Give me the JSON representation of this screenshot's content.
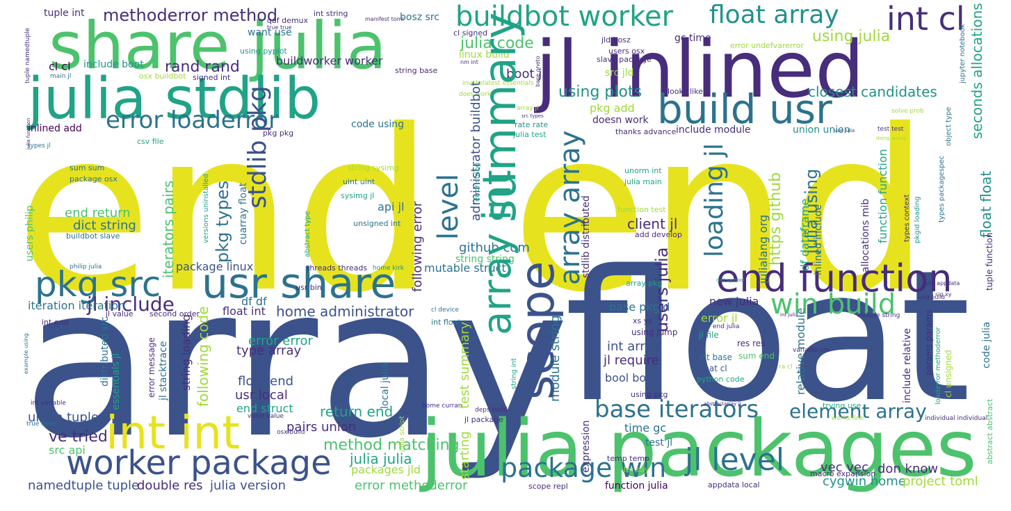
{
  "palette": {
    "background": "#ffffff",
    "yellow": "#e6e31e",
    "lime": "#9fd93a",
    "green": "#4cc26c",
    "teal": "#20a386",
    "cyan": "#21918c",
    "steel": "#2c728e",
    "blue": "#3b528b",
    "indigo": "#472d7b",
    "purple": "#440154"
  },
  "words": [
    {
      "text": "end",
      "color": "yellow"
    },
    {
      "text": "end",
      "color": "yellow"
    },
    {
      "text": "array",
      "color": "blue"
    },
    {
      "text": "float",
      "color": "blue"
    },
    {
      "text": "julia packages",
      "color": "green"
    },
    {
      "text": "jl inlined",
      "color": "indigo"
    },
    {
      "text": "share julia",
      "color": "green"
    },
    {
      "text": "julia stdlib",
      "color": "teal"
    },
    {
      "text": "int int",
      "color": "yellow"
    },
    {
      "text": "usr share",
      "color": "steel"
    },
    {
      "text": "build usr",
      "color": "steel"
    },
    {
      "text": "end function",
      "color": "indigo"
    },
    {
      "text": "worker package",
      "color": "blue"
    },
    {
      "text": "pkg src",
      "color": "steel"
    },
    {
      "text": "buildbot worker",
      "color": "teal"
    },
    {
      "text": "float array",
      "color": "teal"
    },
    {
      "text": "int cl",
      "color": "indigo"
    },
    {
      "text": "package win",
      "color": "steel"
    },
    {
      "text": "jl level",
      "color": "steel"
    },
    {
      "text": "win build",
      "color": "green"
    },
    {
      "text": "base iterators",
      "color": "steel"
    },
    {
      "text": "error loaderror",
      "color": "steel"
    },
    {
      "text": "jl include",
      "color": "indigo"
    },
    {
      "text": "element array",
      "color": "steel"
    },
    {
      "text": "method matching",
      "color": "green"
    },
    {
      "text": "methoderror method",
      "color": "indigo"
    },
    {
      "text": "rand rand",
      "color": "indigo"
    },
    {
      "text": "julia code",
      "color": "green"
    },
    {
      "text": "using plots",
      "color": "cyan"
    },
    {
      "text": "closest candidates",
      "color": "cyan"
    },
    {
      "text": "using julia",
      "color": "lime"
    },
    {
      "text": "julia julia",
      "color": "teal"
    },
    {
      "text": "namedtuple tuple",
      "color": "blue"
    },
    {
      "text": "double res",
      "color": "indigo"
    },
    {
      "text": "julia version",
      "color": "blue"
    },
    {
      "text": "cygwin home",
      "color": "cyan"
    },
    {
      "text": "project toml",
      "color": "lime"
    },
    {
      "text": "don know",
      "color": "indigo"
    },
    {
      "text": "vec vec",
      "color": "indigo"
    },
    {
      "text": "error methoderror",
      "color": "green"
    },
    {
      "text": "packages jld",
      "color": "lime"
    },
    {
      "text": "ve tried",
      "color": "indigo"
    },
    {
      "text": "union tuple",
      "color": "blue"
    },
    {
      "text": "src api",
      "color": "green"
    },
    {
      "text": "pairs union",
      "color": "indigo"
    },
    {
      "text": "return end",
      "color": "teal"
    },
    {
      "text": "end struct",
      "color": "teal"
    },
    {
      "text": "usr local",
      "color": "indigo"
    },
    {
      "text": "float end",
      "color": "blue"
    },
    {
      "text": "type array",
      "color": "indigo"
    },
    {
      "text": "error error",
      "color": "teal"
    },
    {
      "text": "home administrator",
      "color": "blue"
    },
    {
      "text": "float int",
      "color": "indigo"
    },
    {
      "text": "df df",
      "color": "steel"
    },
    {
      "text": "package linux",
      "color": "blue"
    },
    {
      "text": "mutable struct",
      "color": "steel"
    },
    {
      "text": "string string",
      "color": "green"
    },
    {
      "text": "github com",
      "color": "steel"
    },
    {
      "text": "client jl",
      "color": "indigo"
    },
    {
      "text": "api jl",
      "color": "steel"
    },
    {
      "text": "dict string",
      "color": "steel"
    },
    {
      "text": "end return",
      "color": "green"
    },
    {
      "text": "int array",
      "color": "blue"
    },
    {
      "text": "jl require",
      "color": "indigo"
    },
    {
      "text": "bool bool",
      "color": "blue"
    },
    {
      "text": "base pkgid",
      "color": "steel"
    },
    {
      "text": "new julia",
      "color": "indigo"
    },
    {
      "text": "error jl",
      "color": "lime"
    },
    {
      "text": "time gc",
      "color": "steel"
    },
    {
      "text": "test jl",
      "color": "steel"
    },
    {
      "text": "using jump",
      "color": "indigo"
    },
    {
      "text": "sum end",
      "color": "green"
    },
    {
      "text": "float cl",
      "color": "blue"
    },
    {
      "text": "int base",
      "color": "steel"
    },
    {
      "text": "res res",
      "color": "indigo"
    },
    {
      "text": "jl file",
      "color": "teal"
    },
    {
      "text": "boot jl",
      "color": "indigo"
    },
    {
      "text": "pkg add",
      "color": "lime"
    },
    {
      "text": "doesn work",
      "color": "indigo"
    },
    {
      "text": "include module",
      "color": "indigo"
    },
    {
      "text": "union union",
      "color": "cyan"
    },
    {
      "text": "src jld",
      "color": "lime"
    },
    {
      "text": "code using",
      "color": "steel"
    },
    {
      "text": "inlined add",
      "color": "purple"
    },
    {
      "text": "buildworker worker",
      "color": "indigo"
    },
    {
      "text": "include boot",
      "color": "cyan"
    },
    {
      "text": "cl cl",
      "color": "purple"
    },
    {
      "text": "want use",
      "color": "steel"
    },
    {
      "text": "using pyplot",
      "color": "cyan"
    },
    {
      "text": "qaf demux",
      "color": "indigo"
    },
    {
      "text": "tuple int",
      "color": "indigo"
    },
    {
      "text": "bosz src",
      "color": "steel"
    },
    {
      "text": "gc time",
      "color": "indigo"
    },
    {
      "text": "jld bosz",
      "color": "indigo"
    },
    {
      "text": "linux build",
      "color": "lime"
    },
    {
      "text": "slave package",
      "color": "indigo"
    },
    {
      "text": "users osx",
      "color": "indigo"
    },
    {
      "text": "sum sum",
      "color": "steel"
    },
    {
      "text": "package osx",
      "color": "steel"
    },
    {
      "text": "string sysimg",
      "color": "steel"
    },
    {
      "text": "uint uint",
      "color": "lime"
    },
    {
      "text": "sysimg jl",
      "color": "steel"
    },
    {
      "text": "unsigned int",
      "color": "teal"
    },
    {
      "text": "unorm int",
      "color": "steel"
    },
    {
      "text": "julia main",
      "color": "teal"
    },
    {
      "text": "add develop",
      "color": "teal"
    },
    {
      "text": "rate rate",
      "color": "indigo"
    },
    {
      "text": "julia test",
      "color": "cyan"
    },
    {
      "text": "pkg pkg",
      "color": "teal"
    },
    {
      "text": "thanks advance",
      "color": "indigo"
    },
    {
      "text": "looks like",
      "color": "indigo"
    },
    {
      "text": "signed int",
      "color": "indigo"
    },
    {
      "text": "osx buildbot",
      "color": "indigo"
    },
    {
      "text": "string base",
      "color": "lime"
    },
    {
      "text": "int string",
      "color": "indigo"
    },
    {
      "text": "cl signed",
      "color": "indigo"
    },
    {
      "text": "error undefvarerror",
      "color": "indigo"
    },
    {
      "text": "buildbot slave",
      "color": "lime"
    },
    {
      "text": "philip julia",
      "color": "steel"
    },
    {
      "text": "threads threads",
      "color": "steel"
    },
    {
      "text": "home kirk",
      "color": "indigo"
    },
    {
      "text": "usr bin",
      "color": "cyan"
    },
    {
      "text": "array pkg",
      "color": "indigo"
    },
    {
      "text": "function test",
      "color": "teal"
    },
    {
      "text": "iteration iteration",
      "color": "lime"
    },
    {
      "text": "jl value",
      "color": "steel"
    },
    {
      "text": "second order",
      "color": "indigo"
    },
    {
      "text": "cl device",
      "color": "indigo"
    },
    {
      "text": "int float",
      "color": "steel"
    },
    {
      "text": "xs ys",
      "color": "steel"
    },
    {
      "text": "end julia",
      "color": "indigo"
    },
    {
      "text": "include string",
      "color": "indigo"
    },
    {
      "text": "variable nm",
      "color": "indigo"
    },
    {
      "text": "ra cl",
      "color": "indigo"
    },
    {
      "text": "python code",
      "color": "lime"
    },
    {
      "text": "using pkg",
      "color": "teal"
    },
    {
      "text": "trying use",
      "color": "indigo"
    },
    {
      "text": "works fine",
      "color": "teal"
    },
    {
      "text": "individual individual",
      "color": "lime"
    },
    {
      "text": "jl package",
      "color": "indigo"
    },
    {
      "text": "home curran",
      "color": "indigo"
    },
    {
      "text": "deps build",
      "color": "indigo"
    },
    {
      "text": "temp temp",
      "color": "indigo"
    },
    {
      "text": "let say",
      "color": "indigo"
    },
    {
      "text": "scope repl",
      "color": "lime"
    },
    {
      "text": "function julia",
      "color": "indigo"
    },
    {
      "text": "appdata local",
      "color": "purple"
    },
    {
      "text": "macro expansion",
      "color": "indigo"
    },
    {
      "text": "int variable",
      "color": "indigo"
    },
    {
      "text": "true false",
      "color": "indigo"
    },
    {
      "text": "osx build",
      "color": "steel"
    },
    {
      "text": "value value",
      "color": "indigo"
    },
    {
      "text": "int end",
      "color": "indigo"
    },
    {
      "text": "types jl",
      "color": "indigo"
    },
    {
      "text": "csv file",
      "color": "steel"
    },
    {
      "text": "main jl",
      "color": "teal"
    },
    {
      "text": "true true",
      "color": "steel"
    },
    {
      "text": "manifest toml",
      "color": "indigo"
    },
    {
      "text": "nm int",
      "color": "indigo"
    },
    {
      "text": "invokelatest essentials",
      "color": "indigo"
    },
    {
      "text": "does work",
      "color": "lime"
    },
    {
      "text": "array jl",
      "color": "lime"
    },
    {
      "text": "src types",
      "color": "lime"
    },
    {
      "text": "use julia",
      "color": "indigo"
    },
    {
      "text": "test test",
      "color": "indigo"
    },
    {
      "text": "doing wrong",
      "color": "indigo"
    },
    {
      "text": "solve prob",
      "color": "lime"
    },
    {
      "text": "pkg build",
      "color": "lime"
    },
    {
      "text": "sig xy",
      "color": "indigo"
    },
    {
      "text": "julia appdata",
      "color": "indigo"
    },
    {
      "text": "dict symbol",
      "color": "indigo"
    },
    {
      "text": "int julia",
      "color": "teal"
    },
    {
      "text": "abstractarray jl",
      "color": "indigo"
    },
    {
      "text": "julia function",
      "color": "indigo"
    },
    {
      "text": "base oneto",
      "color": "indigo"
    },
    {
      "text": "example using",
      "color": "indigo"
    },
    {
      "text": "summary pass",
      "color": "steel"
    },
    {
      "text": "scope",
      "color": "teal"
    },
    {
      "text": "array int",
      "color": "blue"
    },
    {
      "text": "level",
      "color": "teal"
    },
    {
      "text": "array array",
      "color": "steel"
    },
    {
      "text": "stdlib pkg",
      "color": "steel"
    },
    {
      "text": "loading jl",
      "color": "blue"
    },
    {
      "text": "pkg types",
      "color": "steel"
    },
    {
      "text": "users julia",
      "color": "steel"
    },
    {
      "text": "julia using",
      "color": "indigo"
    },
    {
      "text": "https github",
      "color": "steel"
    },
    {
      "text": "float float",
      "color": "lime"
    },
    {
      "text": "seconds allocations",
      "color": "cyan"
    },
    {
      "text": "iterators pairs",
      "color": "teal"
    },
    {
      "text": "following code",
      "color": "green"
    },
    {
      "text": "following error",
      "color": "lime"
    },
    {
      "text": "administrator buildbot",
      "color": "indigo"
    },
    {
      "text": "module string",
      "color": "blue"
    },
    {
      "text": "string loading",
      "color": "steel"
    },
    {
      "text": "cuarray float",
      "color": "indigo"
    },
    {
      "text": "julialang org",
      "color": "steel"
    },
    {
      "text": "df dataframe",
      "color": "steel"
    },
    {
      "text": "inlined include",
      "color": "teal"
    },
    {
      "text": "allocations mib",
      "color": "steel"
    },
    {
      "text": "function function",
      "color": "indigo"
    },
    {
      "text": "code julia",
      "color": "teal"
    },
    {
      "text": "relative module",
      "color": "steel"
    },
    {
      "text": "include relative",
      "color": "steel"
    },
    {
      "text": "params params",
      "color": "indigo"
    },
    {
      "text": "cl unsigned",
      "color": "indigo"
    },
    {
      "text": "tuple function",
      "color": "lime"
    },
    {
      "text": "test summary",
      "color": "indigo"
    },
    {
      "text": "starting",
      "color": "lime"
    },
    {
      "text": "expression",
      "color": "lime"
    },
    {
      "text": "stdlib distributed",
      "color": "indigo"
    },
    {
      "text": "distributed src",
      "color": "indigo"
    },
    {
      "text": "essentials jl",
      "color": "steel"
    },
    {
      "text": "error message",
      "color": "teal"
    },
    {
      "text": "jl stacktrace",
      "color": "indigo"
    },
    {
      "text": "local julia",
      "color": "steel"
    },
    {
      "text": "users philip",
      "color": "steel"
    },
    {
      "text": "tuple namedtuple",
      "color": "green"
    },
    {
      "text": "error string",
      "color": "indigo"
    },
    {
      "text": "versions uninstalled",
      "color": "teal"
    },
    {
      "text": "abstract type",
      "color": "teal"
    },
    {
      "text": "types context",
      "color": "teal"
    },
    {
      "text": "pkgid loading",
      "color": "indigo"
    },
    {
      "text": "types packagespec",
      "color": "cyan"
    },
    {
      "text": "object type",
      "color": "steel"
    },
    {
      "text": "jupyter notebook",
      "color": "steel"
    },
    {
      "text": "string int",
      "color": "steel"
    },
    {
      "text": "loaderror methoderror",
      "color": "teal"
    },
    {
      "text": "abstract abstract",
      "color": "teal"
    },
    {
      "text": "julia script",
      "color": "green"
    },
    {
      "text": "context array",
      "color": "lime"
    }
  ]
}
